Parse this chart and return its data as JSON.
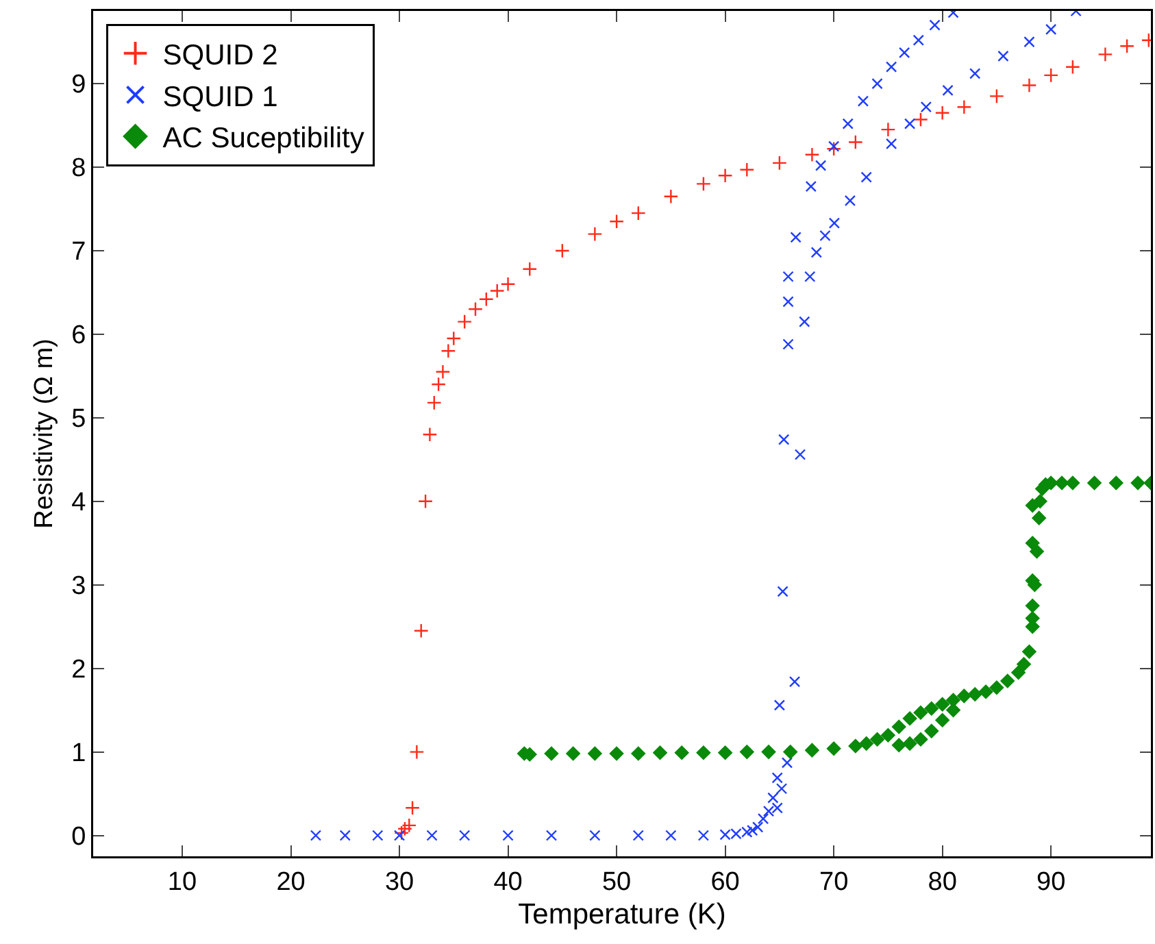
{
  "chart_data": {
    "type": "scatter",
    "xlabel": "Temperature (K)",
    "ylabel": "Resistivity (Ω m)",
    "xlim": [
      1.8,
      99.2
    ],
    "ylim": [
      -0.25,
      9.87
    ],
    "xticks": [
      10,
      20,
      30,
      40,
      50,
      60,
      70,
      80,
      90
    ],
    "yticks": [
      0,
      1,
      2,
      3,
      4,
      5,
      6,
      7,
      8,
      9
    ],
    "grid": false,
    "legend": "top left",
    "series": [
      {
        "name": "SQUID 2",
        "color": "#ff2a1a",
        "marker": "cross",
        "x": [
          30.2,
          30.5,
          30.9,
          31.2,
          31.6,
          32.0,
          32.4,
          32.8,
          33.2,
          33.6,
          34.0,
          34.5,
          35.0,
          36.0,
          37.0,
          38.0,
          39.0,
          40.0,
          42.0,
          45.0,
          48.0,
          50.0,
          52.0,
          55.0,
          58.0,
          60.0,
          62.0,
          65.0,
          68.0,
          70.0,
          72.0,
          75.0,
          78.0,
          80.0,
          82.0,
          85.0,
          88.0,
          90.0,
          92.0,
          95.0,
          97.0,
          99.0
        ],
        "values": [
          0.03,
          0.08,
          0.12,
          0.33,
          1.0,
          2.45,
          4.0,
          4.8,
          5.18,
          5.4,
          5.55,
          5.8,
          5.95,
          6.15,
          6.3,
          6.42,
          6.52,
          6.6,
          6.78,
          7.0,
          7.2,
          7.35,
          7.45,
          7.65,
          7.8,
          7.9,
          7.97,
          8.05,
          8.15,
          8.22,
          8.3,
          8.45,
          8.57,
          8.65,
          8.72,
          8.85,
          8.98,
          9.1,
          9.2,
          9.35,
          9.45,
          9.52
        ]
      },
      {
        "name": "SQUID 1",
        "color": "#1f3dff",
        "marker": "x",
        "x": [
          22.3,
          25,
          28,
          30,
          33,
          36,
          40,
          44,
          48,
          52,
          55,
          58,
          60,
          61,
          62,
          62.5,
          63.0,
          63.5,
          64.0,
          64.4,
          64.8,
          65.2,
          64.8,
          65.7,
          65.0,
          66.4,
          65.3,
          66.9,
          65.4,
          65.8,
          67.3,
          65.8,
          65.8,
          66.5,
          67.9,
          68.8,
          70.0,
          71.3,
          72.7,
          74.0,
          75.3,
          76.5,
          77.8,
          79.3,
          81.0,
          67.8,
          68.4,
          69.2,
          70.05,
          71.5,
          73.0,
          75.3,
          77.0,
          78.5,
          80.5,
          83.0,
          85.6,
          88.0,
          90.0,
          92.3
        ],
        "values": [
          0,
          0,
          0,
          0,
          0,
          0,
          0,
          0,
          0,
          0,
          0,
          0,
          0.01,
          0.02,
          0.04,
          0.06,
          0.1,
          0.2,
          0.29,
          0.45,
          0.33,
          0.56,
          0.69,
          0.87,
          1.56,
          1.84,
          2.92,
          4.56,
          4.74,
          5.88,
          6.15,
          6.39,
          6.69,
          7.16,
          7.77,
          8.02,
          8.25,
          8.52,
          8.79,
          9.0,
          9.2,
          9.37,
          9.52,
          9.7,
          9.85,
          6.69,
          6.98,
          7.18,
          7.33,
          7.6,
          7.88,
          8.28,
          8.52,
          8.72,
          8.92,
          9.12,
          9.33,
          9.5,
          9.65,
          9.87
        ]
      },
      {
        "name": "AC Suceptibility",
        "color": "#0a8a0a",
        "marker": "diamond",
        "x": [
          41.5,
          42,
          44,
          46,
          48,
          50,
          52,
          54,
          56,
          58,
          60,
          62,
          64,
          66,
          68,
          70,
          72,
          73,
          74,
          75,
          76,
          77,
          78,
          79,
          80,
          81,
          82,
          83,
          84,
          85,
          86,
          87,
          87.5,
          88,
          88.3,
          88.5,
          88.7,
          88.9,
          89.0,
          89.2,
          89.5,
          90,
          91,
          92,
          94,
          96,
          98,
          99.2,
          76,
          77,
          78,
          79,
          80,
          81,
          88.3,
          88.3,
          88.3,
          88.3,
          88.3
        ],
        "values": [
          0.98,
          0.97,
          0.98,
          0.98,
          0.98,
          0.98,
          0.98,
          0.99,
          0.99,
          0.99,
          0.99,
          1.0,
          1.0,
          1.0,
          1.02,
          1.04,
          1.07,
          1.1,
          1.15,
          1.2,
          1.3,
          1.4,
          1.47,
          1.52,
          1.57,
          1.62,
          1.67,
          1.69,
          1.72,
          1.77,
          1.85,
          1.95,
          2.05,
          2.2,
          2.6,
          3.0,
          3.4,
          3.8,
          4.0,
          4.15,
          4.2,
          4.22,
          4.22,
          4.22,
          4.22,
          4.22,
          4.22,
          4.22,
          1.08,
          1.1,
          1.15,
          1.25,
          1.38,
          1.5,
          2.5,
          2.75,
          3.05,
          3.5,
          3.95
        ]
      }
    ]
  }
}
